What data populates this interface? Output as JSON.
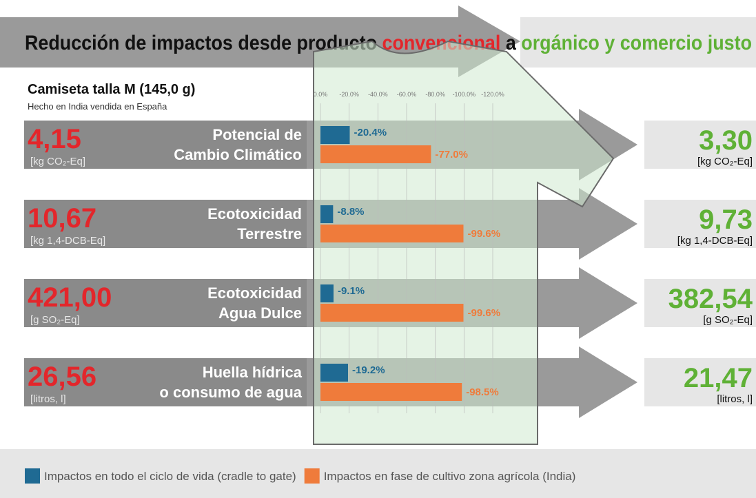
{
  "chart_data": {
    "type": "bar",
    "orientation": "horizontal",
    "title_parts": [
      "Reducción de impactos desde producto ",
      "convencional",
      " a ",
      "orgánico y comercio justo"
    ],
    "title_colors": [
      "#111111",
      "#e3262b",
      "#111111",
      "#5fb136"
    ],
    "subtitle": "Camiseta talla M (145,0 g)",
    "subtitle2": "Hecho en India vendida en España",
    "categories": [
      "Potencial de\nCambio Climático",
      "Ecotoxicidad\nTerrestre",
      "Ecotoxicidad\nAgua Dulce",
      "Huella hídrica\no consumo de agua"
    ],
    "conventional": {
      "values": [
        4.15,
        10.67,
        421.0,
        26.56
      ],
      "value_labels": [
        "4,15",
        "10,67",
        "421,00",
        "26,56"
      ],
      "units": [
        "[kg CO₂-Eq]",
        "[kg 1,4-DCB-Eq]",
        "[g SO₂-Eq]",
        "[litros, l]"
      ],
      "color": "#e3262b"
    },
    "organic": {
      "values": [
        3.3,
        9.73,
        382.54,
        21.47
      ],
      "value_labels": [
        "3,30",
        "9,73",
        "382,54",
        "21,47"
      ],
      "units": [
        "[kg CO₂-Eq]",
        "[kg 1,4-DCB-Eq]",
        "[g SO₂-Eq]",
        "[litros, l]"
      ],
      "color": "#5fb136"
    },
    "series": [
      {
        "name": "Impactos en todo el ciclo de vida (cradle to gate)",
        "color": "#1f6a93",
        "values": [
          -20.4,
          -8.8,
          -9.1,
          -19.2
        ],
        "value_labels": [
          "-20.4%",
          "-8.8%",
          "-9.1%",
          "-19.2%"
        ]
      },
      {
        "name": "Impactos en fase de cultivo zona agrícola (India)",
        "color": "#ef7b3b",
        "values": [
          -77.0,
          -99.6,
          -99.6,
          -98.5
        ],
        "value_labels": [
          "-77.0%",
          "-99.6%",
          "-99.6%",
          "-98.5%"
        ]
      }
    ],
    "xlim": [
      0,
      -120
    ],
    "xticks": [
      {
        "value": 0,
        "label": "0.0%"
      },
      {
        "value": -20,
        "label": "-20.0%"
      },
      {
        "value": -40,
        "label": "-40.0%"
      },
      {
        "value": -60,
        "label": "-60.0%"
      },
      {
        "value": -80,
        "label": "-80.0%"
      },
      {
        "value": -100,
        "label": "-100.0%"
      },
      {
        "value": -120,
        "label": "-120.0%"
      }
    ],
    "grid": true,
    "legend": "bottom"
  }
}
